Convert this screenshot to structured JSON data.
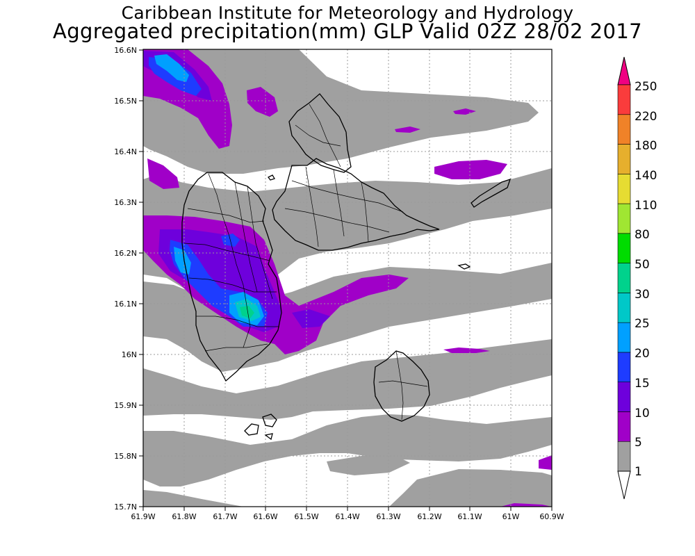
{
  "header": {
    "title_line1": "Caribbean Institute for Meteorology and Hydrology",
    "title_line2": "Aggregated precipitation(mm) GLP Valid 02Z 28/02 2017"
  },
  "axes": {
    "lat_ticks": [
      "16.6N",
      "16.5N",
      "16.4N",
      "16.3N",
      "16.2N",
      "16.1N",
      "16N",
      "15.9N",
      "15.8N",
      "15.7N"
    ],
    "lon_ticks": [
      "61.9W",
      "61.8W",
      "61.7W",
      "61.6W",
      "61.5W",
      "61.4W",
      "61.3W",
      "61.2W",
      "61.1W",
      "61W",
      "60.9W"
    ]
  },
  "colorbar": {
    "levels": [
      "1",
      "5",
      "10",
      "15",
      "20",
      "25",
      "30",
      "50",
      "80",
      "110",
      "140",
      "180",
      "220",
      "250"
    ],
    "colors": [
      "#ffffff",
      "#a0a0a0",
      "#a000c8",
      "#6e00dc",
      "#1e3cff",
      "#00a0ff",
      "#00c8c8",
      "#00d28c",
      "#00dc00",
      "#a0e632",
      "#e6dc32",
      "#e6af2d",
      "#f08228",
      "#fa3c3c",
      "#f00082"
    ]
  },
  "precip_colors": {
    "bin_1_5": "#a0a0a0",
    "bin_5_10": "#a000c8",
    "bin_10_15": "#6e00dc",
    "bin_15_20": "#1e3cff",
    "bin_20_25": "#00a0ff",
    "bin_25_30": "#00c8c8",
    "bin_30_50": "#00d28c"
  }
}
